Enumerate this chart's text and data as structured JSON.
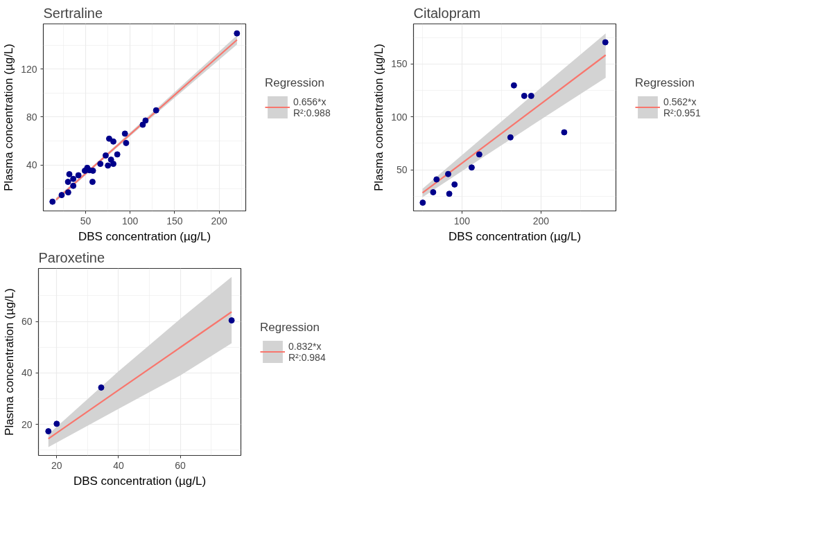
{
  "chart_data": [
    {
      "type": "scatter",
      "title": "Sertraline",
      "xlabel": "DBS concentration (µg/L)",
      "ylabel": "Plasma concentration (µg/L)",
      "legend_title": "Regression",
      "legend": "right",
      "grid": true,
      "xlim": [
        2.6,
        229.8
      ],
      "ylim": [
        1.8,
        157.6
      ],
      "xticks": [
        50,
        100,
        150,
        200
      ],
      "yticks": [
        40,
        80,
        120
      ],
      "series": [
        {
          "marker": "circle",
          "color": "#00008b",
          "x": [
            12.9,
            23.2,
            30.5,
            31.8,
            30.3,
            36.2,
            36.2,
            42,
            49.2,
            51.9,
            54.4,
            57.8,
            58.3,
            66.6,
            72.6,
            75.1,
            76.5,
            81.2,
            78.6,
            81.2,
            85.6,
            94.2,
            95.5,
            114.2,
            117.3,
            129.2,
            219.9
          ],
          "values": [
            9.5,
            15,
            17.3,
            32.4,
            26,
            28.5,
            22.7,
            31.5,
            35.3,
            37.7,
            35.7,
            26,
            35.3,
            41,
            48,
            39.6,
            62,
            59.6,
            44.5,
            41,
            48.9,
            66.2,
            58.4,
            73.6,
            77.1,
            85.6,
            149.7
          ]
        },
        {
          "type": "line",
          "name": "0.656*x\nR²:0.988",
          "color": "#f8766d",
          "x": [
            17,
            60,
            120,
            180,
            220
          ],
          "values": [
            11.2,
            39.4,
            78.7,
            118.1,
            144.3
          ],
          "lower": [
            9.7,
            38.2,
            76.9,
            115.1,
            140.5
          ],
          "upper": [
            12.7,
            40.5,
            80.5,
            121.1,
            148.1
          ]
        }
      ]
    },
    {
      "type": "scatter",
      "title": "Citalopram",
      "xlabel": "DBS concentration (µg/L)",
      "ylabel": "Plasma concentration (µg/L)",
      "legend_title": "Regression",
      "legend": "right",
      "grid": true,
      "xlim": [
        38.6,
        295
      ],
      "ylim": [
        11,
        188
      ],
      "xticks": [
        100,
        200
      ],
      "yticks": [
        50,
        100,
        150
      ],
      "series": [
        {
          "marker": "circle",
          "color": "#00008b",
          "x": [
            50.3,
            63.5,
            67.8,
            82.5,
            83.9,
            90.6,
            112.3,
            121.9,
            161.4,
            165.8,
            178.9,
            187.7,
            229.5,
            281.6
          ],
          "values": [
            18.8,
            28.7,
            40.8,
            45.9,
            27.2,
            36,
            52.1,
            64.5,
            80.6,
            129.8,
            119.9,
            119.9,
            85.4,
            170.6
          ]
        },
        {
          "type": "line",
          "name": "0.562*x\nR²:0.951",
          "color": "#f8766d",
          "x": [
            50,
            120,
            200,
            282
          ],
          "values": [
            28.1,
            67.4,
            112.4,
            158.5
          ],
          "lower": [
            24,
            58.5,
            97.5,
            137
          ],
          "upper": [
            32,
            76.5,
            127.5,
            179
          ]
        }
      ]
    },
    {
      "type": "scatter",
      "title": "Paroxetine",
      "xlabel": "DBS concentration (µg/L)",
      "ylabel": "Plasma concentration (µg/L)",
      "legend_title": "Regression",
      "legend": "right",
      "grid": true,
      "xlim": [
        14.1,
        79.6
      ],
      "ylim": [
        7.9,
        80.6
      ],
      "xticks": [
        20,
        40,
        60
      ],
      "yticks": [
        20,
        40,
        60
      ],
      "series": [
        {
          "marker": "circle",
          "color": "#00008b",
          "x": [
            17.3,
            20,
            34.4,
            76.6
          ],
          "values": [
            17.3,
            20.2,
            34.3,
            60.4
          ]
        },
        {
          "type": "line",
          "name": "0.832*x\nR²:0.984",
          "color": "#f8766d",
          "x": [
            17.3,
            40,
            60,
            76.6
          ],
          "values": [
            14.4,
            33.3,
            49.9,
            63.7
          ],
          "lower": [
            11.1,
            26,
            39,
            51.5
          ],
          "upper": [
            16.1,
            40.6,
            61,
            77.3
          ]
        }
      ]
    }
  ]
}
